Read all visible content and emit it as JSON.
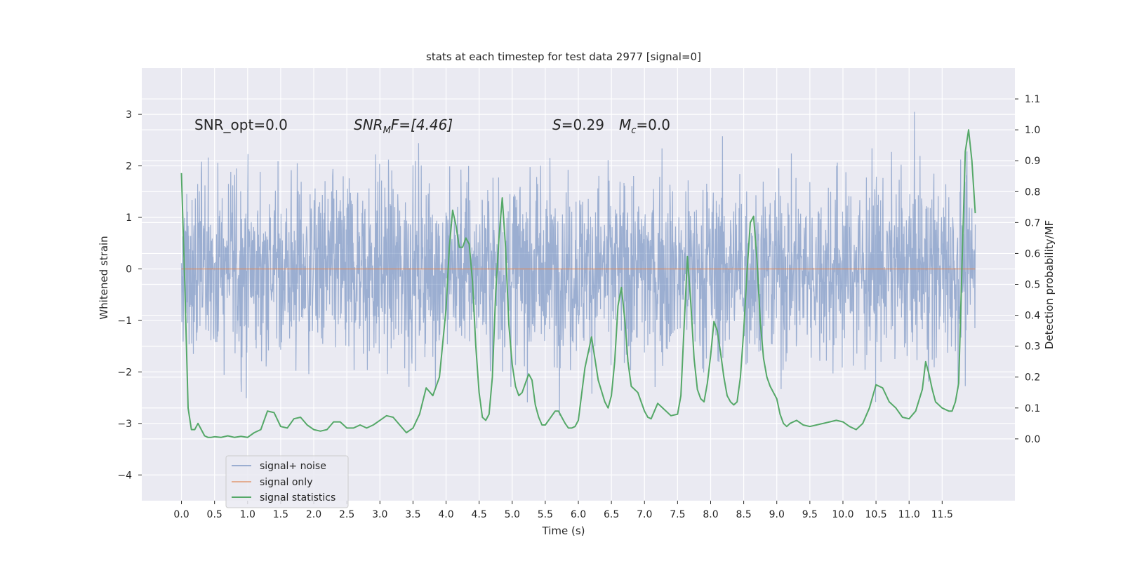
{
  "chart_data": {
    "type": "line",
    "title": "stats at each timestep for test data 2977 [signal=0]",
    "xlabel": "Time (s)",
    "ylabel": "Whitened strain",
    "ylabel_right": "Detection probability/MF",
    "xlim": [
      -0.6,
      12.6
    ],
    "ylim": [
      -4.5,
      3.9
    ],
    "ylim_right": [
      -0.2,
      1.2
    ],
    "x_ticks": [
      "0.0",
      "0.5",
      "1.0",
      "1.5",
      "2.0",
      "2.5",
      "3.0",
      "3.5",
      "4.0",
      "4.5",
      "5.0",
      "5.5",
      "6.0",
      "6.5",
      "7.0",
      "7.5",
      "8.0",
      "8.5",
      "9.0",
      "9.5",
      "10.0",
      "10.5",
      "11.0",
      "11.5"
    ],
    "y_ticks": [
      "3",
      "2",
      "1",
      "0",
      "−1",
      "−2",
      "−3",
      "−4"
    ],
    "y_ticks_right": [
      "1.1",
      "1.0",
      "0.9",
      "0.8",
      "0.7",
      "0.6",
      "0.5",
      "0.4",
      "0.3",
      "0.2",
      "0.1",
      "0.0"
    ],
    "annotations": {
      "snr_opt": "SNR_opt=0.0",
      "snr_mf_main": "SNR",
      "snr_mf_sub": "M",
      "snr_mf_rest": "F=[4.46]",
      "s_main": "S",
      "s_rest": "=0.29",
      "mc_main": "M",
      "mc_sub": "c",
      "mc_rest": "=0.0"
    },
    "series": [
      {
        "name": "signal+ noise",
        "color": "#4c72b0",
        "opacity": 0.5,
        "x_range": [
          0.0,
          12.0
        ],
        "typical_amplitude": 1.4,
        "peak_max": 3.55,
        "peak_min": -4.1
      },
      {
        "name": "signal only",
        "color": "#dd8452",
        "x_range": [
          0.0,
          12.0
        ],
        "value": 0.0
      },
      {
        "name": "signal statistics",
        "color": "#55a868",
        "axis": "right",
        "x": [
          0.0,
          0.05,
          0.1,
          0.15,
          0.2,
          0.25,
          0.3,
          0.35,
          0.4,
          0.45,
          0.5,
          0.6,
          0.7,
          0.8,
          0.9,
          1.0,
          1.1,
          1.2,
          1.3,
          1.4,
          1.5,
          1.6,
          1.7,
          1.8,
          1.9,
          2.0,
          2.1,
          2.2,
          2.3,
          2.4,
          2.5,
          2.6,
          2.7,
          2.8,
          2.9,
          3.0,
          3.1,
          3.2,
          3.3,
          3.4,
          3.5,
          3.6,
          3.7,
          3.8,
          3.9,
          4.0,
          4.05,
          4.1,
          4.15,
          4.2,
          4.25,
          4.3,
          4.35,
          4.4,
          4.45,
          4.5,
          4.55,
          4.6,
          4.65,
          4.7,
          4.75,
          4.8,
          4.85,
          4.9,
          4.95,
          5.0,
          5.05,
          5.1,
          5.15,
          5.2,
          5.25,
          5.3,
          5.35,
          5.4,
          5.45,
          5.5,
          5.55,
          5.6,
          5.65,
          5.7,
          5.75,
          5.8,
          5.85,
          5.9,
          5.95,
          6.0,
          6.1,
          6.2,
          6.3,
          6.4,
          6.45,
          6.5,
          6.55,
          6.6,
          6.65,
          6.7,
          6.75,
          6.8,
          6.85,
          6.9,
          6.95,
          7.0,
          7.05,
          7.1,
          7.15,
          7.2,
          7.3,
          7.4,
          7.5,
          7.55,
          7.6,
          7.65,
          7.7,
          7.75,
          7.8,
          7.85,
          7.9,
          7.95,
          8.0,
          8.05,
          8.1,
          8.15,
          8.2,
          8.25,
          8.3,
          8.35,
          8.4,
          8.45,
          8.5,
          8.55,
          8.6,
          8.65,
          8.7,
          8.75,
          8.8,
          8.85,
          8.9,
          8.95,
          9.0,
          9.05,
          9.1,
          9.15,
          9.2,
          9.3,
          9.4,
          9.5,
          9.6,
          9.7,
          9.8,
          9.9,
          10.0,
          10.1,
          10.2,
          10.3,
          10.4,
          10.5,
          10.6,
          10.7,
          10.8,
          10.9,
          11.0,
          11.1,
          11.2,
          11.25,
          11.3,
          11.35,
          11.4,
          11.5,
          11.6,
          11.65,
          11.7,
          11.75,
          11.8,
          11.85,
          11.9,
          11.95,
          12.0
        ],
        "values": [
          0.86,
          0.5,
          0.1,
          0.03,
          0.03,
          0.05,
          0.03,
          0.01,
          0.005,
          0.005,
          0.007,
          0.005,
          0.01,
          0.005,
          0.008,
          0.005,
          0.02,
          0.03,
          0.09,
          0.085,
          0.04,
          0.035,
          0.065,
          0.07,
          0.045,
          0.03,
          0.025,
          0.03,
          0.055,
          0.055,
          0.035,
          0.035,
          0.045,
          0.035,
          0.045,
          0.06,
          0.075,
          0.07,
          0.045,
          0.02,
          0.035,
          0.08,
          0.165,
          0.14,
          0.2,
          0.42,
          0.62,
          0.74,
          0.69,
          0.62,
          0.62,
          0.65,
          0.63,
          0.51,
          0.3,
          0.15,
          0.07,
          0.06,
          0.08,
          0.2,
          0.47,
          0.65,
          0.78,
          0.62,
          0.37,
          0.24,
          0.17,
          0.14,
          0.15,
          0.18,
          0.21,
          0.19,
          0.11,
          0.07,
          0.045,
          0.045,
          0.06,
          0.075,
          0.09,
          0.09,
          0.07,
          0.05,
          0.035,
          0.035,
          0.04,
          0.06,
          0.23,
          0.33,
          0.19,
          0.12,
          0.1,
          0.14,
          0.25,
          0.43,
          0.49,
          0.39,
          0.25,
          0.17,
          0.16,
          0.15,
          0.12,
          0.09,
          0.07,
          0.065,
          0.09,
          0.115,
          0.095,
          0.075,
          0.08,
          0.14,
          0.37,
          0.59,
          0.44,
          0.26,
          0.16,
          0.13,
          0.12,
          0.18,
          0.27,
          0.38,
          0.35,
          0.28,
          0.2,
          0.14,
          0.12,
          0.11,
          0.12,
          0.2,
          0.35,
          0.54,
          0.7,
          0.72,
          0.58,
          0.38,
          0.26,
          0.2,
          0.17,
          0.15,
          0.13,
          0.08,
          0.05,
          0.04,
          0.05,
          0.06,
          0.045,
          0.04,
          0.045,
          0.05,
          0.055,
          0.06,
          0.055,
          0.04,
          0.03,
          0.05,
          0.1,
          0.175,
          0.165,
          0.12,
          0.1,
          0.07,
          0.065,
          0.09,
          0.16,
          0.25,
          0.21,
          0.16,
          0.12,
          0.1,
          0.09,
          0.09,
          0.12,
          0.18,
          0.56,
          0.93,
          1.0,
          0.9,
          0.73
        ]
      }
    ],
    "legend_position": "lower-left",
    "grid": true
  }
}
